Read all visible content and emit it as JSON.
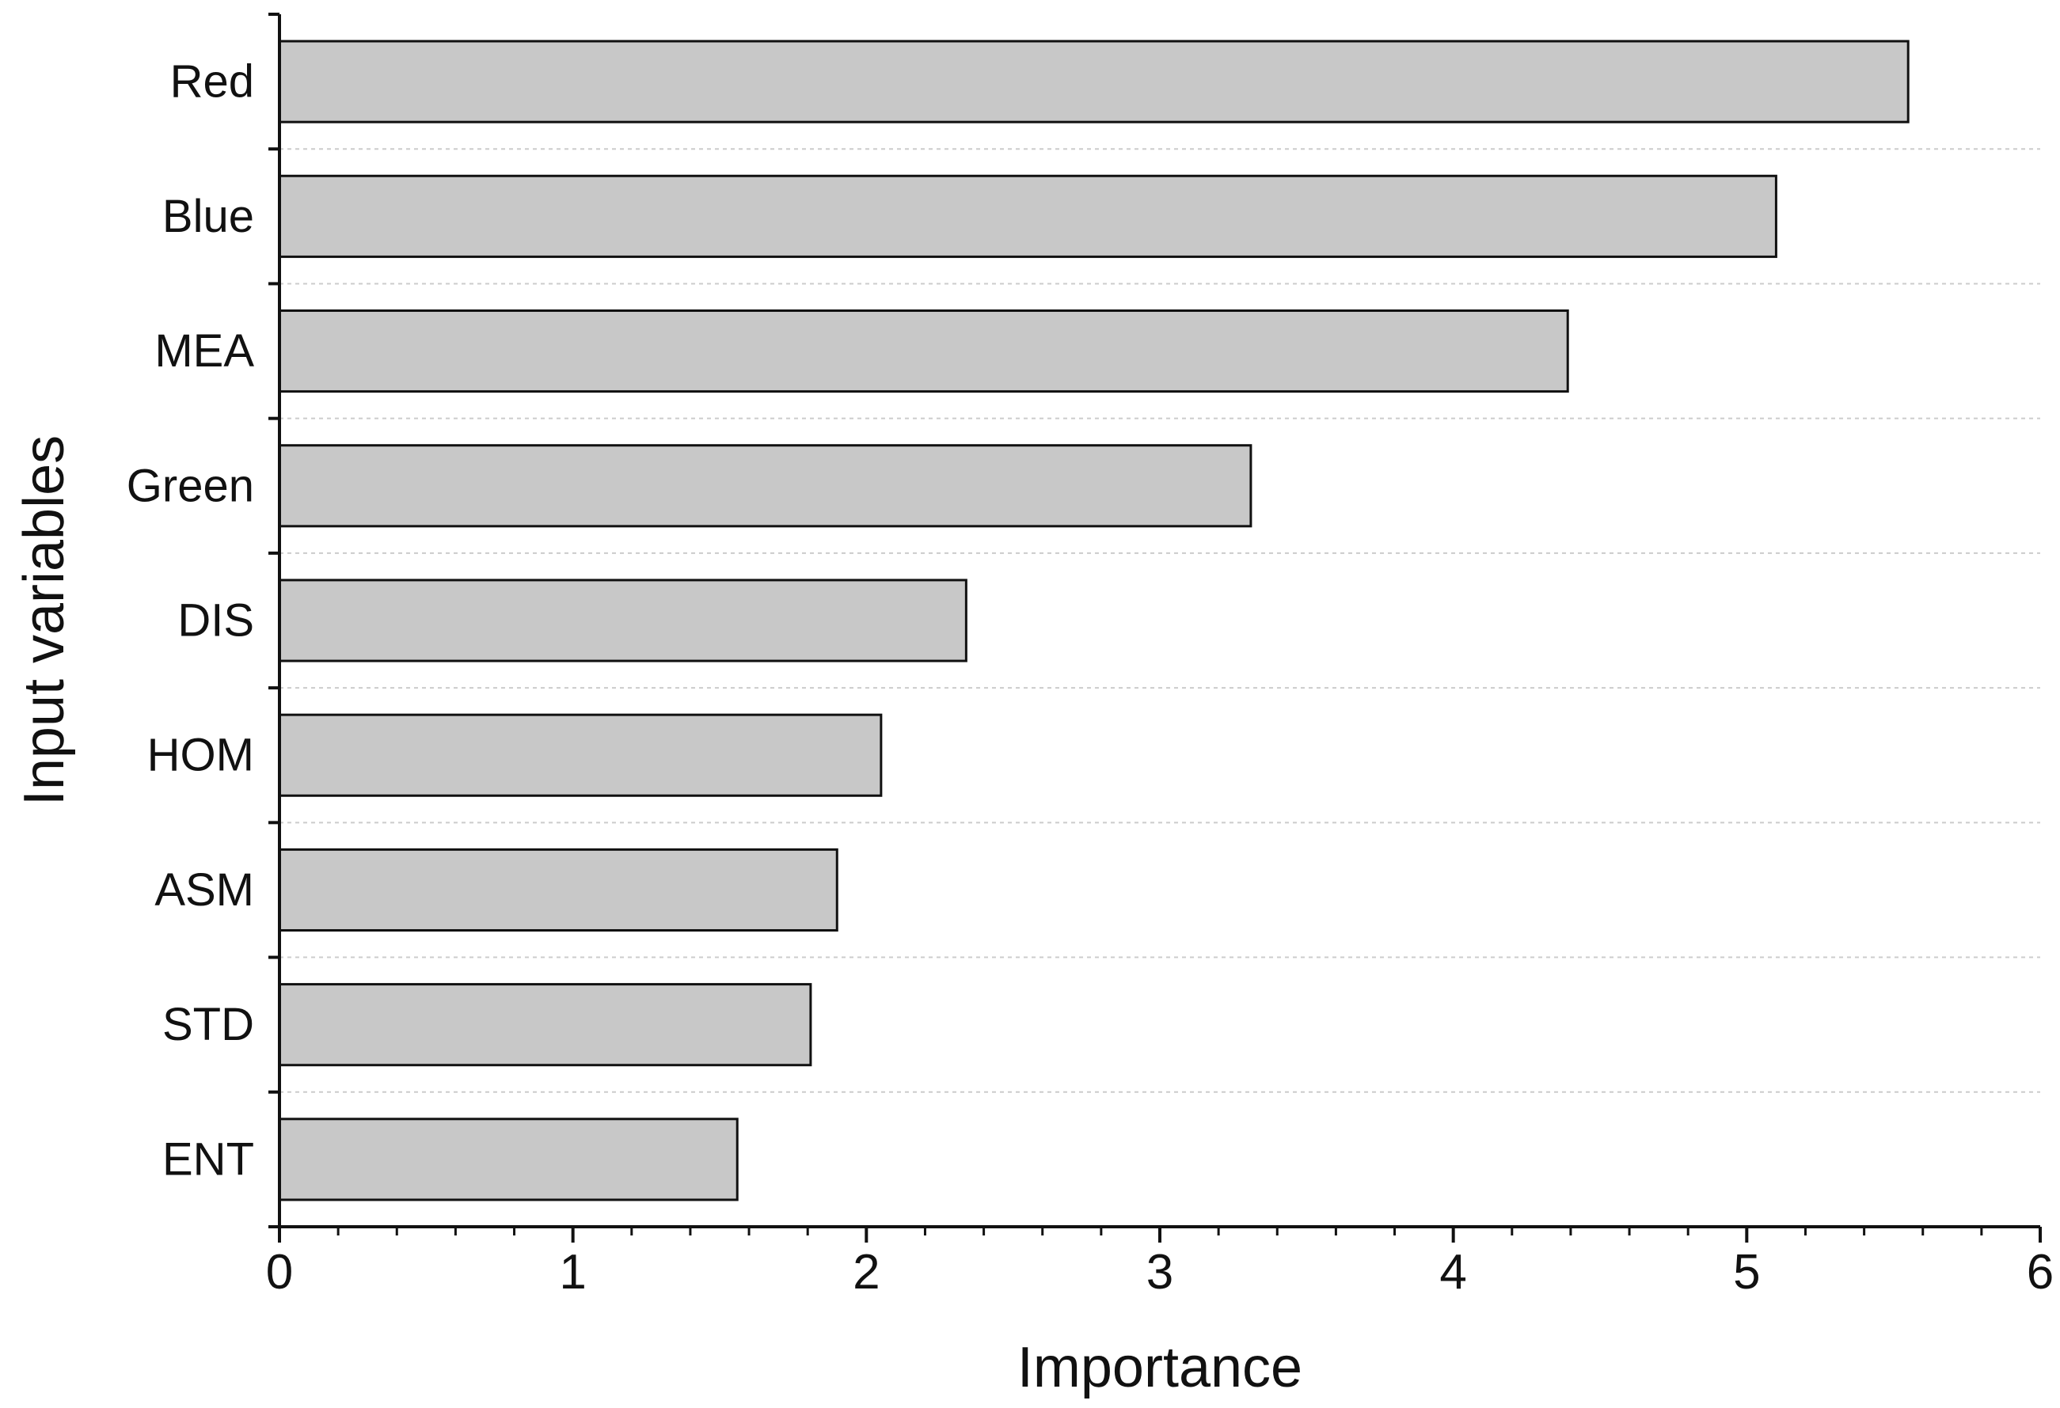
{
  "chart_data": {
    "type": "bar",
    "orientation": "horizontal",
    "categories": [
      "Red",
      "Blue",
      "MEA",
      "Green",
      "DIS",
      "HOM",
      "ASM",
      "STD",
      "ENT"
    ],
    "values": [
      5.55,
      5.1,
      4.39,
      3.31,
      2.34,
      2.05,
      1.9,
      1.81,
      1.56
    ],
    "xlabel": "Importance",
    "ylabel": "Input variables",
    "xlim": [
      0,
      6
    ],
    "x_ticks": [
      0,
      1,
      2,
      3,
      4,
      5,
      6
    ],
    "x_tick_labels": [
      "0",
      "1",
      "2",
      "3",
      "4",
      "5",
      "6"
    ],
    "grid": "horizontal dashed lines between categories",
    "colors": {
      "bar_fill": "#c8c8c8",
      "bar_stroke": "#111111",
      "axis": "#111111",
      "grid": "#cccccc"
    }
  }
}
